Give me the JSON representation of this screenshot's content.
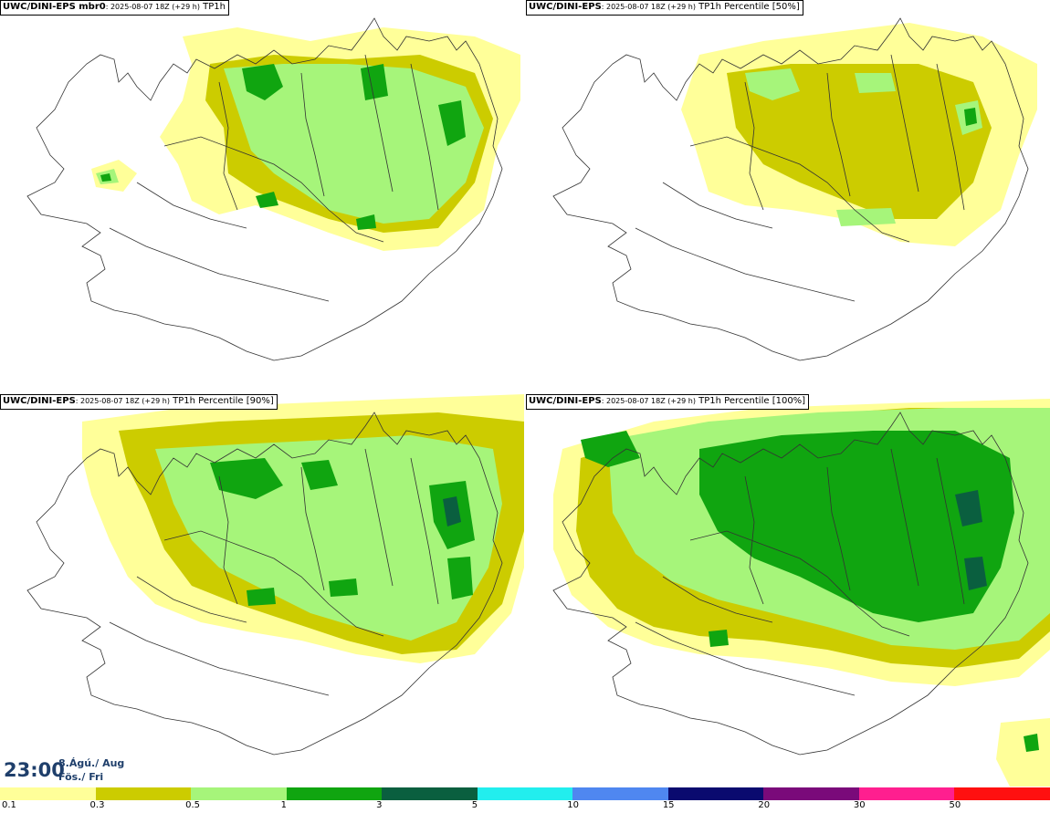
{
  "panels": [
    {
      "model": "UWC/DINI-EPS mbr0",
      "run": ": 2025-08-07 18Z (+29 h)",
      "field": " TP1h"
    },
    {
      "model": "UWC/DINI-EPS",
      "run": ": 2025-08-07 18Z (+29 h)",
      "field": " TP1h Percentile [50%]"
    },
    {
      "model": "UWC/DINI-EPS",
      "run": ": 2025-08-07 18Z (+29 h)",
      "field": " TP1h Percentile [90%]"
    },
    {
      "model": "UWC/DINI-EPS",
      "run": ": 2025-08-07 18Z (+29 h)",
      "field": " TP1h Percentile [100%]"
    }
  ],
  "valid_time": {
    "time": "23:00",
    "date_line1": "8.Ágú./ Aug",
    "date_line2": "Fös./ Fri"
  },
  "legend": {
    "levels": [
      "0.1",
      "0.3",
      "0.5",
      "1",
      "3",
      "5",
      "10",
      "15",
      "20",
      "30",
      "50"
    ],
    "colors": [
      "#ffff99",
      "#cccc00",
      "#a6f57a",
      "#10a510",
      "#0a5f3f",
      "#22eeee",
      "#4f87f0",
      "#0a0a6f",
      "#7a0a7a",
      "#ff1f8f",
      "#ff1010"
    ]
  }
}
